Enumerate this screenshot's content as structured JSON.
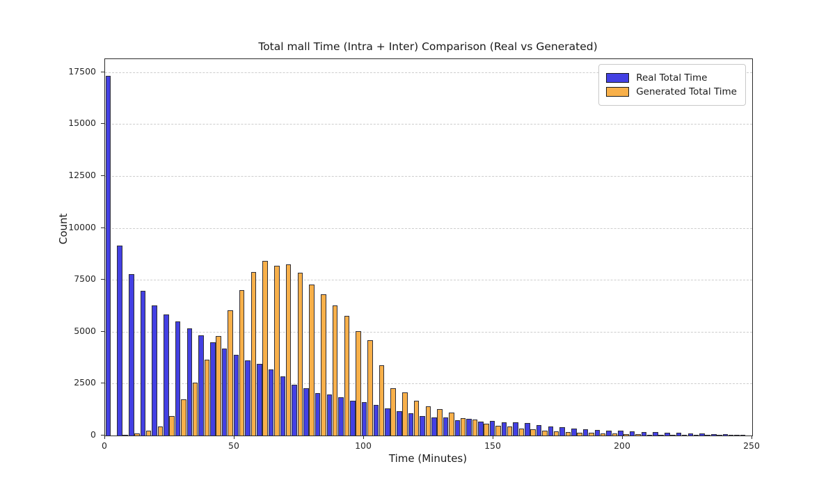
{
  "figure": {
    "title": "Total mall Time (Intra + Inter) Comparison (Real vs Generated)",
    "xlabel": "Time (Minutes)",
    "ylabel": "Count",
    "background_color": "#ffffff",
    "grid_color": "#cdcdcd",
    "spine_color": "#2b2b2b"
  },
  "legend": {
    "position": "upper right",
    "items": [
      {
        "label": "Real Total Time",
        "color": "#4340e3",
        "edge_color": "#1a1a1a"
      },
      {
        "label": "Generated Total Time",
        "color": "#f8b04a",
        "edge_color": "#1a1a1a"
      }
    ]
  },
  "axes": {
    "x_ticks": [
      0,
      50,
      100,
      150,
      200,
      250
    ],
    "y_ticks": [
      0,
      2500,
      5000,
      7500,
      10000,
      12500,
      15000,
      17500
    ],
    "x_range": [
      0,
      250
    ],
    "y_range": [
      0,
      18130
    ],
    "grid": "horizontal-dashed"
  },
  "chart_data": {
    "type": "bar",
    "mode": "grouped-histogram",
    "title": "Total mall Time (Intra + Inter) Comparison (Real vs Generated)",
    "xlabel": "Time (Minutes)",
    "ylabel": "Count",
    "xlim": [
      0,
      250
    ],
    "ylim": [
      0,
      18130
    ],
    "bin_start_minutes": 0,
    "bin_width_minutes": 4.5,
    "bin_count": 55,
    "series": [
      {
        "name": "Real Total Time",
        "color": "#4340e3",
        "values": [
          17330,
          9150,
          7760,
          6970,
          6260,
          5820,
          5480,
          5150,
          4830,
          4500,
          4190,
          3890,
          3610,
          3440,
          3180,
          2850,
          2460,
          2270,
          2040,
          1980,
          1840,
          1680,
          1600,
          1490,
          1310,
          1170,
          1060,
          955,
          870,
          860,
          730,
          790,
          680,
          710,
          620,
          640,
          600,
          510,
          450,
          400,
          340,
          300,
          270,
          240,
          220,
          200,
          180,
          160,
          140,
          120,
          100,
          85,
          70,
          55,
          40
        ]
      },
      {
        "name": "Generated Total Time",
        "color": "#f8b04a",
        "values": [
          0,
          30,
          90,
          220,
          430,
          950,
          1750,
          2540,
          3650,
          4800,
          6030,
          7000,
          7870,
          8415,
          8190,
          8240,
          7850,
          7280,
          6810,
          6255,
          5775,
          5030,
          4580,
          3400,
          2295,
          2070,
          1680,
          1420,
          1270,
          1120,
          840,
          755,
          565,
          485,
          420,
          340,
          285,
          230,
          195,
          165,
          140,
          120,
          100,
          85,
          70,
          60,
          50,
          45,
          40,
          35,
          30,
          25,
          20,
          15,
          10
        ]
      }
    ]
  }
}
